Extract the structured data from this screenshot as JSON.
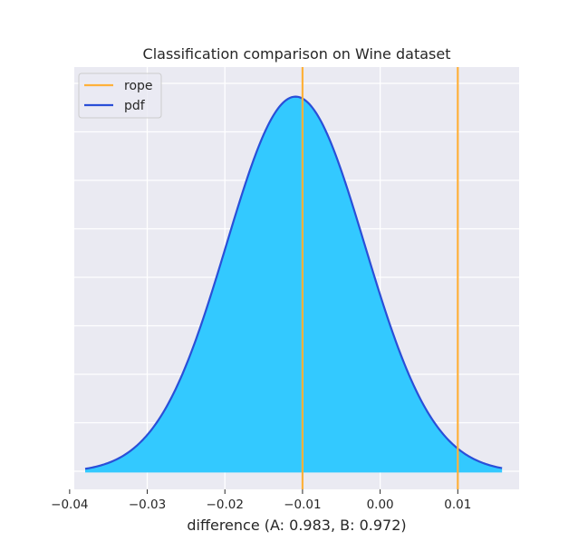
{
  "chart_data": {
    "type": "area",
    "title": "Classification comparison on Wine dataset",
    "xlabel": "difference (A: 0.983, B: 0.972)",
    "ylabel": "",
    "xlim": [
      -0.0394,
      0.0179
    ],
    "ylim": [
      0,
      1.0
    ],
    "x_ticks": [
      -0.04,
      -0.03,
      -0.02,
      -0.01,
      0.0,
      0.01
    ],
    "x_tick_labels": [
      "−0.04",
      "−0.03",
      "−0.02",
      "−0.01",
      "0.00",
      "0.01"
    ],
    "y_tick_labels_visible": false,
    "grid": true,
    "legend": {
      "position": "top-left",
      "entries": [
        "rope",
        "pdf"
      ]
    },
    "pdf": {
      "mean": -0.0109,
      "sd": 0.0089,
      "x_range": [
        -0.038,
        0.0157
      ],
      "peak_y": 0.93,
      "n_samples": 240
    },
    "rope": [
      -0.01,
      0.01
    ],
    "series": [
      {
        "name": "rope",
        "color": "#ffb13b",
        "kind": "vline",
        "x": [
          -0.01,
          0.01
        ]
      },
      {
        "name": "pdf",
        "color": "#2a4fd8",
        "kind": "line"
      }
    ],
    "colors": {
      "fill": "#33c9ff",
      "background": "#eaeaf2",
      "grid": "#ffffff"
    }
  }
}
